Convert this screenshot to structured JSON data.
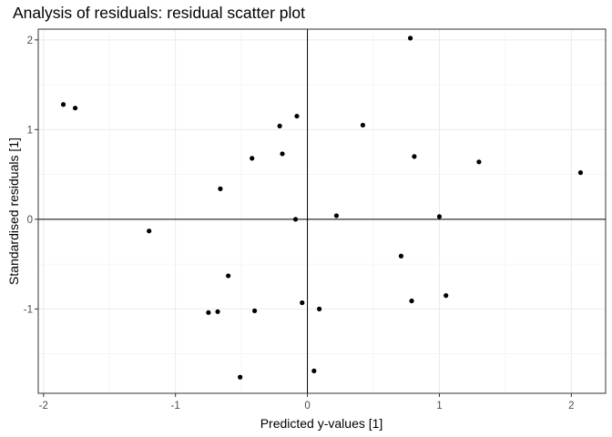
{
  "chart_data": {
    "type": "scatter",
    "title": "Analysis of residuals: residual scatter plot",
    "xlabel": "Predicted y-values [1]",
    "ylabel": "Standardised residuals [1]",
    "xlim": [
      -2.04,
      2.26
    ],
    "ylim": [
      -1.94,
      2.12
    ],
    "x_ticks": [
      -2,
      -1,
      0,
      1,
      2
    ],
    "x_tick_labels": [
      "-2",
      "-1",
      "0",
      "1",
      "2"
    ],
    "y_ticks": [
      -1,
      0,
      1,
      2
    ],
    "y_tick_labels": [
      "-1",
      "0",
      "1",
      "2"
    ],
    "grid": true,
    "reference_lines": {
      "x": 0,
      "y": 0
    },
    "point_color": "#000000",
    "points": [
      {
        "x": -1.85,
        "y": 1.28
      },
      {
        "x": -1.76,
        "y": 1.24
      },
      {
        "x": -1.2,
        "y": -0.13
      },
      {
        "x": -0.75,
        "y": -1.04
      },
      {
        "x": -0.68,
        "y": -1.03
      },
      {
        "x": -0.66,
        "y": 0.34
      },
      {
        "x": -0.6,
        "y": -0.63
      },
      {
        "x": -0.51,
        "y": -1.76
      },
      {
        "x": -0.42,
        "y": 0.68
      },
      {
        "x": -0.4,
        "y": -1.02
      },
      {
        "x": -0.21,
        "y": 1.04
      },
      {
        "x": -0.19,
        "y": 0.73
      },
      {
        "x": -0.09,
        "y": 0.0
      },
      {
        "x": -0.08,
        "y": 1.15
      },
      {
        "x": -0.04,
        "y": -0.93
      },
      {
        "x": 0.05,
        "y": -1.69
      },
      {
        "x": 0.09,
        "y": -1.0
      },
      {
        "x": 0.22,
        "y": 0.04
      },
      {
        "x": 0.42,
        "y": 1.05
      },
      {
        "x": 0.71,
        "y": -0.41
      },
      {
        "x": 0.78,
        "y": 2.02
      },
      {
        "x": 0.79,
        "y": -0.91
      },
      {
        "x": 0.81,
        "y": 0.7
      },
      {
        "x": 1.0,
        "y": 0.03
      },
      {
        "x": 1.05,
        "y": -0.85
      },
      {
        "x": 1.3,
        "y": 0.64
      },
      {
        "x": 2.07,
        "y": 0.52
      }
    ]
  }
}
